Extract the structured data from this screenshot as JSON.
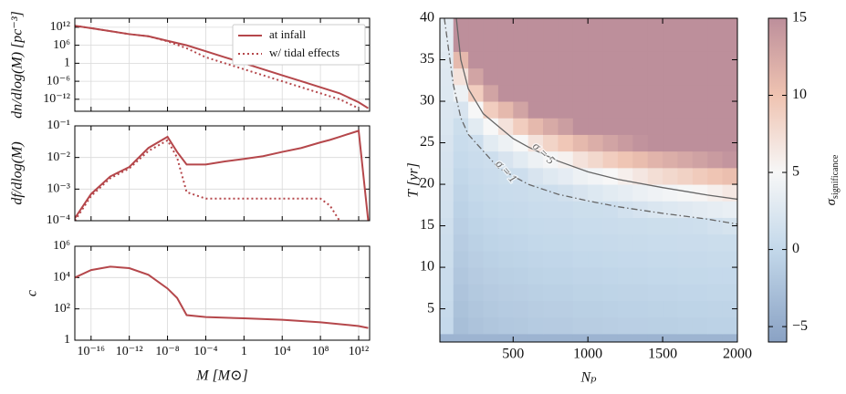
{
  "chart_data": [
    {
      "type": "line",
      "ylabel": "dn/dlog(M) [pc⁻³]",
      "xlog": true,
      "ylog": true,
      "grid": true,
      "legend": "upper right",
      "x": [
        2e-18,
        1e-16,
        1e-14,
        1e-12,
        1e-10,
        1e-08,
        1e-06,
        0.0001,
        0.01,
        1,
        100.0,
        10000.0,
        1000000.0,
        100000000.0,
        10000000000.0,
        1000000000000.0,
        10000000000000.0
      ],
      "series": [
        {
          "name": "at infall",
          "color": "#b5474b",
          "dash": "solid",
          "values": [
            3000000000000.0,
            500000000000.0,
            50000000000.0,
            5000000000.0,
            1000000000.0,
            30000000.0,
            1000000.0,
            10000.0,
            100.0,
            1,
            0.01,
            0.0001,
            1e-06,
            1e-08,
            1e-10,
            1e-13,
            1e-15
          ]
        },
        {
          "name": "w/ tidal effects",
          "color": "#b5474b",
          "dash": "dotted",
          "values": [
            3000000000000.0,
            500000000000.0,
            50000000000.0,
            5000000000.0,
            1000000000.0,
            20000000.0,
            100000.0,
            100.0,
            1,
            0.01,
            0.0001,
            1e-06,
            1e-08,
            1e-10,
            1e-12,
            1e-15,
            null
          ]
        }
      ],
      "xlim": [
        2e-18,
        14000000000000.0
      ],
      "xticks": [
        1e-16,
        1e-12,
        1e-08,
        0.0001,
        1,
        10000.0,
        100000000.0,
        1000000000000.0
      ],
      "ylim": [
        1e-16,
        1000000000000000.0
      ],
      "yticks": [
        {
          "value": 1000000000000.0,
          "label": "10¹²"
        },
        {
          "value": 1000000.0,
          "label": "10⁶"
        },
        1,
        {
          "value": 1e-06,
          "label": "10⁻⁶"
        },
        {
          "value": 1e-12,
          "label": "10⁻¹²"
        }
      ]
    },
    {
      "type": "line",
      "ylabel": "df/dlog(M)",
      "xlog": true,
      "ylog": true,
      "grid": true,
      "x": [
        2e-18,
        1e-16,
        1e-14,
        1e-12,
        1e-10,
        1e-08,
        1e-07,
        1e-06,
        0.0001,
        0.01,
        1,
        100.0,
        10000.0,
        1000000.0,
        100000000.0,
        1000000000.0,
        10000000000.0,
        1000000000000.0,
        10000000000000.0
      ],
      "series": [
        {
          "color": "#b5474b",
          "dash": "solid",
          "values": [
            0.00012,
            0.0007,
            0.0025,
            0.005,
            0.02,
            0.045,
            0.015,
            0.006,
            0.006,
            0.0075,
            0.009,
            0.011,
            0.015,
            0.02,
            0.03,
            0.036,
            0.045,
            0.07,
            0.0001
          ]
        },
        {
          "color": "#b5474b",
          "dash": "dotted",
          "values": [
            0.0001,
            0.0006,
            0.0022,
            0.0045,
            0.016,
            0.035,
            0.01,
            0.0008,
            0.0005,
            0.0005,
            0.0005,
            0.0005,
            0.0005,
            0.0005,
            0.0005,
            0.0003,
            0.0001,
            null,
            null
          ]
        }
      ],
      "xlim": [
        2e-18,
        14000000000000.0
      ],
      "xticks": [
        1e-16,
        1e-12,
        1e-08,
        0.0001,
        1,
        10000.0,
        100000000.0,
        1000000000000.0
      ],
      "ylim": [
        0.0001,
        0.1
      ],
      "yticks": [
        {
          "value": 0.0001,
          "label": "10⁻⁴"
        },
        {
          "value": 0.001,
          "label": "10⁻³"
        },
        {
          "value": 0.01,
          "label": "10⁻²"
        },
        {
          "value": 0.1,
          "label": "10⁻¹"
        }
      ]
    },
    {
      "type": "line",
      "ylabel": "c",
      "xlabel": "M [M⊙]",
      "xlog": true,
      "ylog": true,
      "grid": true,
      "x": [
        2e-18,
        1e-16,
        1e-14,
        1e-12,
        1e-10,
        1e-08,
        1e-07,
        1e-06,
        0.0001,
        1,
        10000.0,
        100000000.0,
        1000000000000.0,
        10000000000000.0
      ],
      "color": "#b5474b",
      "values": [
        10000.0,
        30000.0,
        50000.0,
        40000.0,
        15000.0,
        2000.0,
        500.0,
        40,
        30,
        25,
        20,
        14,
        8,
        6
      ],
      "xlim": [
        2e-18,
        14000000000000.0
      ],
      "xticks": [
        {
          "value": 1e-16,
          "label": "10⁻¹⁶"
        },
        {
          "value": 1e-12,
          "label": "10⁻¹²"
        },
        {
          "value": 1e-08,
          "label": "10⁻⁸"
        },
        {
          "value": 0.0001,
          "label": "10⁻⁴"
        },
        1,
        {
          "value": 10000.0,
          "label": "10⁴"
        },
        {
          "value": 100000000.0,
          "label": "10⁸"
        },
        {
          "value": 1000000000000.0,
          "label": "10¹²"
        }
      ],
      "ylim": [
        1,
        1000000.0
      ],
      "yticks": [
        1,
        {
          "value": 100.0,
          "label": "10²"
        },
        {
          "value": 10000.0,
          "label": "10⁴"
        },
        {
          "value": 1000000.0,
          "label": "10⁶"
        }
      ]
    },
    {
      "type": "heatmap",
      "xlabel": "Nₚ",
      "ylabel": "T [yr]",
      "colorbar_label": {
        "symbol": "σ",
        "subscript": "significance"
      },
      "x_edges": [
        0,
        100,
        200,
        300,
        400,
        500,
        600,
        700,
        800,
        900,
        1000,
        1100,
        1200,
        1300,
        1400,
        1500,
        1600,
        1700,
        1800,
        1900,
        2000
      ],
      "y_edges": [
        0,
        2,
        4,
        6,
        8,
        10,
        12,
        14,
        16,
        18,
        20,
        22,
        24,
        26,
        28,
        30,
        32,
        34,
        36,
        38,
        40
      ],
      "z": [
        [
          -4,
          -4,
          -4,
          -4,
          -4,
          -4,
          -4,
          -4,
          -4,
          -4,
          -4,
          -4,
          -4,
          -4,
          -4,
          -4,
          -4,
          -4,
          -4,
          -4
        ],
        [
          0.2,
          -2.8,
          -2.3,
          -2.0,
          -1.8,
          -1.7,
          -1.5,
          -1.4,
          -1.4,
          -1.2,
          -1.2,
          -1.1,
          -1.0,
          -1.0,
          -0.9,
          -0.9,
          -0.8,
          -0.8,
          -0.7,
          -0.7
        ],
        [
          0.4,
          -2.5,
          -2.0,
          -1.7,
          -1.5,
          -1.4,
          -1.2,
          -1.1,
          -1.1,
          -0.9,
          -0.9,
          -0.8,
          -0.7,
          -0.7,
          -0.6,
          -0.6,
          -0.5,
          -0.5,
          -0.4,
          -0.4
        ],
        [
          0.6,
          -2.2,
          -1.7,
          -1.4,
          -1.2,
          -1.1,
          -0.9,
          -0.8,
          -0.8,
          -0.6,
          -0.6,
          -0.5,
          -0.4,
          -0.4,
          -0.3,
          -0.3,
          -0.2,
          -0.2,
          -0.1,
          -0.1
        ],
        [
          0.7,
          -1.9,
          -1.4,
          -1.1,
          -0.9,
          -0.8,
          -0.6,
          -0.5,
          -0.5,
          -0.3,
          -0.3,
          -0.2,
          -0.1,
          -0.1,
          0,
          0,
          0.1,
          0.1,
          0.2,
          0.2
        ],
        [
          0.9,
          -1.6,
          -1.1,
          -0.8,
          -0.6,
          -0.5,
          -0.3,
          -0.2,
          -0.2,
          0,
          0,
          0.1,
          0.2,
          0.2,
          0.3,
          0.3,
          0.4,
          0.4,
          0.5,
          0.5
        ],
        [
          1.0,
          -1.3,
          -0.8,
          -0.5,
          -0.3,
          -0.2,
          0,
          0.1,
          0.1,
          0.3,
          0.3,
          0.4,
          0.5,
          0.5,
          0.6,
          0.6,
          0.7,
          0.7,
          0.8,
          0.8
        ],
        [
          1.2,
          -1.0,
          -0.5,
          -0.2,
          0,
          0.1,
          0.3,
          0.4,
          0.4,
          0.6,
          0.6,
          0.7,
          0.8,
          0.8,
          0.9,
          0.9,
          1.0,
          1.1,
          1.4,
          1.7
        ],
        [
          1.4,
          -0.7,
          -0.2,
          0.1,
          0.3,
          0.4,
          0.6,
          0.7,
          0.7,
          0.9,
          0.9,
          1.0,
          1.4,
          1.8,
          2.2,
          2.5,
          2.8,
          3.1,
          3.4,
          3.7
        ],
        [
          1.5,
          -0.4,
          0.1,
          0.4,
          0.6,
          0.7,
          0.9,
          1.0,
          1.3,
          2.0,
          2.5,
          3.0,
          3.4,
          3.8,
          4.2,
          4.5,
          4.8,
          5.2,
          5.8,
          6.4
        ],
        [
          1.7,
          -0.1,
          0.4,
          0.7,
          0.9,
          1.0,
          2.0,
          2.7,
          3.3,
          4.0,
          4.5,
          5.0,
          5.8,
          6.6,
          7.4,
          8.0,
          8.6,
          9.2,
          9.8,
          10.4
        ],
        [
          1.8,
          0.3,
          0.7,
          1.0,
          2.0,
          3.0,
          4.0,
          4.7,
          5.6,
          7.0,
          8.0,
          9.0,
          9.8,
          10.6,
          11.4,
          12.0,
          12.6,
          13.2,
          13.8,
          14.4
        ],
        [
          2.0,
          0.6,
          1.0,
          3.0,
          4.0,
          5.0,
          7.0,
          8.4,
          9.6,
          11.0,
          12.0,
          13.0,
          13.8,
          14.6,
          15,
          15,
          15,
          15,
          15,
          15
        ],
        [
          2.2,
          0.9,
          3.0,
          5.0,
          7.0,
          9.0,
          11.0,
          12.4,
          13.6,
          15,
          15,
          15,
          15,
          15,
          15,
          15,
          15,
          15,
          15,
          15
        ],
        [
          2.3,
          2.0,
          5.0,
          9.0,
          11.0,
          13.0,
          15,
          15,
          15,
          15,
          15,
          15,
          15,
          15,
          15,
          15,
          15,
          15,
          15,
          15
        ],
        [
          2.5,
          4.0,
          9.0,
          13.0,
          15,
          15,
          15,
          15,
          15,
          15,
          15,
          15,
          15,
          15,
          15,
          15,
          15,
          15,
          15,
          15
        ],
        [
          2.6,
          7.0,
          13.0,
          15,
          15,
          15,
          15,
          15,
          15,
          15,
          15,
          15,
          15,
          15,
          15,
          15,
          15,
          15,
          15,
          15
        ],
        [
          2.8,
          11.0,
          15,
          15,
          15,
          15,
          15,
          15,
          15,
          15,
          15,
          15,
          15,
          15,
          15,
          15,
          15,
          15,
          15,
          15
        ],
        [
          3.0,
          15,
          15,
          15,
          15,
          15,
          15,
          15,
          15,
          15,
          15,
          15,
          15,
          15,
          15,
          15,
          15,
          15,
          15,
          15
        ],
        [
          3.1,
          15,
          15,
          15,
          15,
          15,
          15,
          15,
          15,
          15,
          15,
          15,
          15,
          15,
          15,
          15,
          15,
          15,
          15,
          15
        ]
      ],
      "colorscale": [
        [
          -6,
          "#8aa2c4"
        ],
        [
          0,
          "#c3d8ea"
        ],
        [
          5,
          "#f7f7f7"
        ],
        [
          10,
          "#efc3b1"
        ],
        [
          15,
          "#bd8f9b"
        ]
      ],
      "zlim": [
        -6,
        15
      ],
      "zticks": [
        {
          "value": -5,
          "label": "−5"
        },
        0,
        5,
        10,
        15
      ],
      "contours": [
        {
          "label": "σ = 5",
          "color": "#666666",
          "dash": "solid",
          "x": [
            120,
            150,
            200,
            300,
            400,
            500,
            600,
            800,
            1000,
            1200,
            1500,
            1800,
            2000
          ],
          "y": [
            40,
            35,
            31.5,
            28.5,
            27,
            25.5,
            24.5,
            22.8,
            21.5,
            20.6,
            19.6,
            18.7,
            18.2
          ]
        },
        {
          "label": "σ = 1",
          "color": "#666666",
          "dash": "dashdot",
          "x": [
            40,
            100,
            150,
            200,
            300,
            400,
            500,
            600,
            800,
            1000,
            1200,
            1500,
            1800,
            2000
          ],
          "y": [
            40,
            32,
            28,
            26,
            24,
            22,
            21,
            20,
            18.8,
            18,
            17.3,
            16.5,
            15.8,
            15.2
          ]
        }
      ],
      "xlim": [
        10,
        2000
      ],
      "xticks": [
        500,
        1000,
        1500,
        2000
      ],
      "ylim": [
        1,
        40
      ],
      "yticks": [
        5,
        10,
        15,
        20,
        25,
        30,
        35,
        40
      ]
    }
  ]
}
